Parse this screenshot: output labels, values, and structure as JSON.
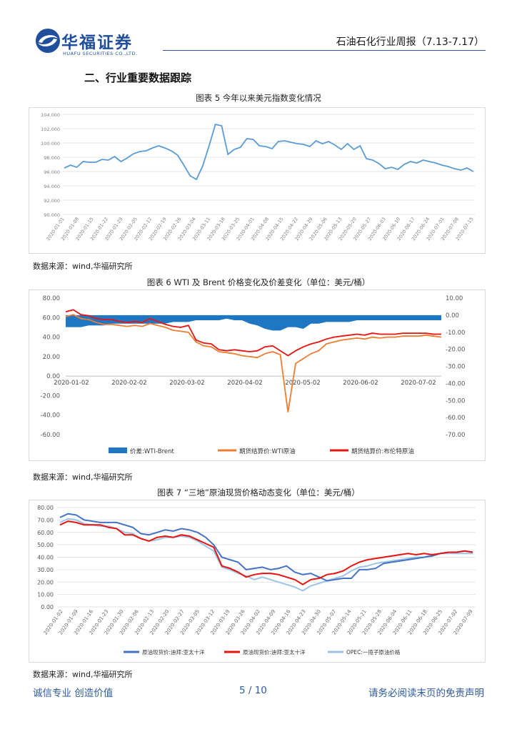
{
  "header": {
    "brand_cn": "华福证券",
    "brand_en": "HUAFU SECURITIES CO.,LTD.",
    "report_title": "石油石化行业周报（7.13-7.17）"
  },
  "section_title": "二、行业重要数据跟踪",
  "sources": {
    "fig5": "数据来源：wind,华福研究所",
    "fig6": "数据来源：wind,华福研究所",
    "fig7": "数据来源：wind,华福研究所"
  },
  "footer": {
    "left": "诚信专业  创造价值",
    "page": "5  /  10",
    "right": "请务必阅读末页的免责声明"
  },
  "colors": {
    "brand_blue": "#1f4e9c",
    "dxy_line": "#5b9bd5",
    "spread_fill": "#1f77c4",
    "wti": "#ed7d31",
    "brent": "#e8130f",
    "apac_dubai": "#4472c4",
    "apac_spot": "#e8130f",
    "opec": "#9dc3e6"
  },
  "chart_data": [
    {
      "id": "fig5",
      "type": "line",
      "title": "图表  5  今年以来美元指数变化情况",
      "xlabel": "",
      "ylabel": "",
      "ylim": [
        90,
        104
      ],
      "y_ticks": [
        "90.000",
        "92.000",
        "94.000",
        "96.000",
        "98.000",
        "100.000",
        "102.000",
        "104.000"
      ],
      "x_ticks": [
        "2020-01-01",
        "2020-01-08",
        "2020-01-15",
        "2020-01-22",
        "2020-01-29",
        "2020-02-05",
        "2020-02-12",
        "2020-02-19",
        "2020-02-26",
        "2020-03-04",
        "2020-03-11",
        "2020-03-18",
        "2020-03-25",
        "2020-04-01",
        "2020-04-08",
        "2020-04-15",
        "2020-04-22",
        "2020-04-29",
        "2020-05-06",
        "2020-05-13",
        "2020-05-20",
        "2020-05-27",
        "2020-06-03",
        "2020-06-10",
        "2020-06-17",
        "2020-06-24",
        "2020-07-01",
        "2020-07-08",
        "2020-07-15"
      ],
      "grid": true,
      "series": [
        {
          "name": "美元指数",
          "values": [
            96.5,
            96.9,
            96.6,
            97.4,
            97.3,
            97.3,
            97.7,
            97.6,
            98.1,
            97.4,
            97.9,
            98.5,
            98.8,
            98.9,
            99.3,
            99.6,
            99.3,
            98.9,
            98.3,
            96.9,
            95.4,
            94.9,
            96.8,
            99.6,
            102.6,
            102.4,
            98.4,
            99.1,
            99.4,
            100.6,
            100.5,
            99.6,
            99.5,
            99.2,
            100.2,
            100.3,
            100.1,
            99.9,
            99.8,
            99.5,
            100.3,
            99.9,
            100.2,
            99.7,
            99.1,
            99.9,
            99.1,
            99.6,
            97.8,
            97.6,
            97.1,
            96.4,
            96.6,
            96.3,
            97.0,
            97.4,
            97.2,
            97.6,
            97.4,
            97.2,
            96.9,
            96.7,
            96.4,
            96.2,
            96.5,
            96.0
          ]
        }
      ]
    },
    {
      "id": "fig6",
      "type": "line",
      "title": "图表  6 WTI 及 Brent 价格变化及价差变化（单位：美元/桶）",
      "ylim": [
        -60,
        80
      ],
      "y2lim": [
        -70,
        10
      ],
      "y_ticks": [
        "80.00",
        "60.00",
        "40.00",
        "20.00",
        "0.00",
        "-20.00",
        "-40.00",
        "-60.00"
      ],
      "y2_ticks": [
        "10.00",
        "0.00",
        "-10.00",
        "-20.00",
        "-30.00",
        "-40.00",
        "-50.00",
        "-60.00",
        "-70.00"
      ],
      "x_ticks": [
        "2020-01-02",
        "2020-02-02",
        "2020-03-02",
        "2020-04-02",
        "2020-05-02",
        "2020-06-02",
        "2020-07-02"
      ],
      "legend": [
        "价差:WTI-Brent",
        "期货结算价:WTI原油",
        "期货结算价:布伦特原油"
      ],
      "series": [
        {
          "name": "价差:WTI-Brent",
          "axis": "right",
          "values": [
            -7,
            -7,
            -7,
            -6,
            -6,
            -6,
            -5,
            -5,
            -5,
            -5,
            -5,
            -5,
            -5,
            -5,
            -4,
            -4,
            -4,
            -3,
            -3,
            -3,
            -3,
            -2,
            -3,
            -3,
            -5,
            -6,
            -8,
            -9,
            -9,
            -7,
            -7,
            -8,
            -5,
            -5,
            -4,
            -4,
            -4,
            -4,
            -3,
            -3,
            -3,
            -3,
            -3,
            -3,
            -3,
            -3,
            -3,
            -3,
            -3,
            -3
          ]
        },
        {
          "name": "期货结算价:WTI原油",
          "axis": "left",
          "values": [
            61,
            63,
            59,
            58,
            55,
            53,
            53,
            52,
            51,
            52,
            51,
            54,
            52,
            50,
            47,
            46,
            45,
            35,
            31,
            30,
            25,
            24,
            23,
            21,
            20,
            19,
            23,
            25,
            22,
            -37,
            13,
            18,
            23,
            26,
            33,
            35,
            37,
            38,
            39,
            38,
            40,
            39,
            40,
            40,
            41,
            41,
            41,
            42,
            41,
            40
          ]
        },
        {
          "name": "期货结算价:布伦特原油",
          "axis": "left",
          "values": [
            66,
            68,
            63,
            62,
            59,
            58,
            58,
            56,
            55,
            56,
            55,
            59,
            56,
            53,
            51,
            50,
            52,
            37,
            34,
            33,
            27,
            26,
            27,
            26,
            25,
            26,
            30,
            31,
            26,
            21,
            26,
            30,
            33,
            35,
            38,
            40,
            41,
            42,
            43,
            42,
            44,
            43,
            43,
            43,
            44,
            44,
            44,
            44,
            43,
            43
          ]
        }
      ]
    },
    {
      "id": "fig7",
      "type": "line",
      "title": "图表  7  “三地”原油现货价格动态变化（单位：美元/桶）",
      "ylim": [
        0,
        80
      ],
      "y_ticks": [
        "0.00",
        "10.00",
        "20.00",
        "30.00",
        "40.00",
        "50.00",
        "60.00",
        "70.00",
        "80.00"
      ],
      "x_ticks": [
        "2020-01-02",
        "2020-01-09",
        "2020-01-16",
        "2020-01-23",
        "2020-01-30",
        "2020-02-06",
        "2020-02-13",
        "2020-02-20",
        "2020-02-27",
        "2020-03-05",
        "2020-03-12",
        "2020-03-19",
        "2020-03-26",
        "2020-04-02",
        "2020-04-09",
        "2020-04-16",
        "2020-04-23",
        "2020-04-30",
        "2020-05-07",
        "2020-05-14",
        "2020-05-21",
        "2020-05-28",
        "2020-06-04",
        "2020-06-11",
        "2020-06-18",
        "2020-06-25",
        "2020-07-02",
        "2020-07-09"
      ],
      "legend": [
        "原油现货价:迪拜:亚太十洋",
        "原油现货价:迪拜:亚太十洋",
        "OPEC:一揽子原油价格"
      ],
      "series": [
        {
          "name": "原油现货价:迪拜:亚太十洋",
          "values": [
            72,
            75,
            74,
            70,
            69,
            68,
            68,
            68,
            66,
            64,
            59,
            58,
            60,
            62,
            61,
            63,
            62,
            60,
            56,
            50,
            40,
            38,
            36,
            30,
            31,
            32,
            30,
            31,
            33,
            28,
            26,
            27,
            24,
            21,
            22,
            23,
            23,
            30,
            30,
            31,
            35,
            36,
            37,
            38,
            39,
            40,
            41,
            43,
            44,
            44,
            45,
            44
          ]
        },
        {
          "name": "原油现货价:迪拜:亚太十洋",
          "values": [
            66,
            69,
            68,
            66,
            66,
            66,
            64,
            63,
            58,
            58,
            55,
            53,
            56,
            57,
            56,
            58,
            57,
            54,
            51,
            48,
            33,
            31,
            28,
            24,
            26,
            27,
            27,
            26,
            24,
            22,
            18,
            22,
            23,
            26,
            27,
            29,
            33,
            36,
            38,
            39,
            40,
            41,
            42,
            43,
            42,
            43,
            42,
            43,
            44,
            44,
            45,
            44
          ]
        },
        {
          "name": "OPEC:一揽子原油价格",
          "values": [
            68,
            71,
            70,
            67,
            66,
            65,
            65,
            63,
            60,
            59,
            55,
            53,
            54,
            56,
            56,
            57,
            56,
            53,
            49,
            45,
            32,
            30,
            27,
            25,
            22,
            24,
            22,
            20,
            18,
            16,
            13,
            17,
            19,
            21,
            23,
            25,
            29,
            32,
            33,
            35,
            36,
            37,
            38,
            39,
            40,
            40,
            42,
            43,
            43,
            43,
            43,
            43
          ]
        }
      ]
    }
  ]
}
